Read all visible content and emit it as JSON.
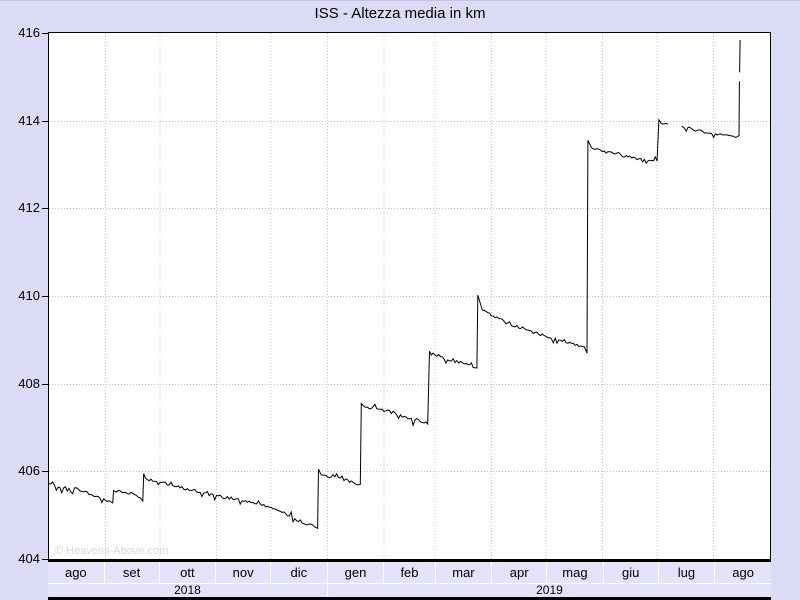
{
  "title": "ISS - Altezza media in km",
  "watermark": "© Heavens-Above.com",
  "colors": {
    "page_bg": "#dbdbf6",
    "plot_bg": "#ffffff",
    "cell_bg": "#e3e3fa",
    "grid": "#c8c8c8",
    "line": "#000000",
    "border": "#000000",
    "watermark_text": "#d8d8d8"
  },
  "y_axis": {
    "tick_labels": [
      "416",
      "414",
      "412",
      "410",
      "408",
      "406",
      "404"
    ],
    "min": 404,
    "max": 416
  },
  "x_axis": {
    "months": [
      {
        "label": "ago",
        "days": 31
      },
      {
        "label": "set",
        "days": 30
      },
      {
        "label": "ott",
        "days": 31
      },
      {
        "label": "nov",
        "days": 30
      },
      {
        "label": "dic",
        "days": 31
      },
      {
        "label": "gen",
        "days": 31
      },
      {
        "label": "feb",
        "days": 28
      },
      {
        "label": "mar",
        "days": 31
      },
      {
        "label": "apr",
        "days": 30
      },
      {
        "label": "mag",
        "days": 31
      },
      {
        "label": "giu",
        "days": 30
      },
      {
        "label": "lug",
        "days": 31
      },
      {
        "label": "ago",
        "days": 31
      }
    ],
    "years": [
      {
        "label": "2018",
        "days": 153
      },
      {
        "label": "2019",
        "days": 243
      }
    ],
    "total_days": 396
  },
  "chart_data": {
    "type": "line",
    "title": "ISS - Altezza media in km",
    "x_unit": "days from start of ago 2018",
    "ylim": [
      404,
      416
    ],
    "grid": true,
    "noise_amplitude_km": 0.07,
    "series": [
      {
        "name": "ISS altezza media (km)",
        "points": [
          [
            0,
            405.72
          ],
          [
            8,
            405.62
          ],
          [
            16,
            405.6
          ],
          [
            24,
            405.45
          ],
          [
            33,
            405.33
          ],
          [
            35,
            405.28
          ],
          [
            35.5,
            405.56
          ],
          [
            40,
            405.52
          ],
          [
            46,
            405.5
          ],
          [
            50,
            405.4
          ],
          [
            51.5,
            405.32
          ],
          [
            52,
            405.95
          ],
          [
            53,
            405.84
          ],
          [
            70,
            405.65
          ],
          [
            92,
            405.45
          ],
          [
            110,
            405.32
          ],
          [
            122,
            405.18
          ],
          [
            135,
            404.92
          ],
          [
            146,
            404.73
          ],
          [
            147.5,
            404.7
          ],
          [
            148,
            406.05
          ],
          [
            149.5,
            405.92
          ],
          [
            160,
            405.85
          ],
          [
            171,
            405.7
          ],
          [
            171.5,
            407.55
          ],
          [
            173,
            407.48
          ],
          [
            185,
            407.38
          ],
          [
            195,
            407.25
          ],
          [
            208,
            407.08
          ],
          [
            209,
            408.74
          ],
          [
            215,
            408.62
          ],
          [
            228,
            408.45
          ],
          [
            235,
            408.36
          ],
          [
            235.5,
            410.02
          ],
          [
            238,
            409.68
          ],
          [
            250,
            409.42
          ],
          [
            262,
            409.23
          ],
          [
            275,
            409.05
          ],
          [
            288,
            408.92
          ],
          [
            294,
            408.84
          ],
          [
            295.5,
            408.7
          ],
          [
            296,
            413.55
          ],
          [
            298,
            413.38
          ],
          [
            310,
            413.25
          ],
          [
            322,
            413.15
          ],
          [
            334,
            413.08
          ],
          [
            335,
            414.02
          ],
          [
            336,
            413.95
          ],
          [
            340,
            413.92
          ],
          null,
          [
            347.5,
            413.88
          ],
          [
            356,
            413.78
          ],
          [
            366,
            413.7
          ],
          [
            374,
            413.66
          ],
          [
            377.5,
            413.62
          ],
          [
            379,
            413.66
          ],
          [
            379.2,
            414.9
          ],
          null,
          [
            379.3,
            415.1
          ],
          [
            379.6,
            415.84
          ]
        ]
      }
    ]
  }
}
